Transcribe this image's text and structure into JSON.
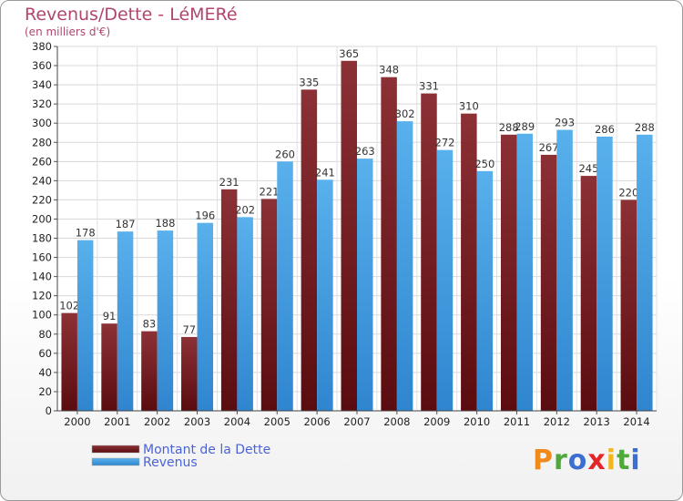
{
  "header": {
    "title": "Revenus/Dette - LéMERé",
    "subtitle": "(en milliers d'€)"
  },
  "legend": {
    "items": [
      {
        "label": "Montant de la Dette",
        "color": "#7a1f22"
      },
      {
        "label": "Revenus",
        "color": "#4ba3e6"
      }
    ]
  },
  "logo": {
    "text": "Proxiti"
  },
  "chart_data": {
    "type": "bar",
    "categories": [
      "2000",
      "2001",
      "2002",
      "2003",
      "2004",
      "2005",
      "2006",
      "2007",
      "2008",
      "2009",
      "2010",
      "2011",
      "2012",
      "2013",
      "2014"
    ],
    "series": [
      {
        "name": "Montant de la Dette",
        "color": "#7a1f22",
        "values": [
          102,
          91,
          83,
          77,
          231,
          221,
          335,
          365,
          348,
          331,
          310,
          288,
          267,
          245,
          220
        ]
      },
      {
        "name": "Revenus",
        "color": "#4ba3e6",
        "values": [
          178,
          187,
          188,
          196,
          202,
          260,
          241,
          263,
          302,
          272,
          250,
          289,
          293,
          286,
          288
        ]
      }
    ],
    "ylim": [
      0,
      380
    ],
    "ytick_step": 20,
    "grid": true,
    "legend_position": "bottom-left"
  }
}
